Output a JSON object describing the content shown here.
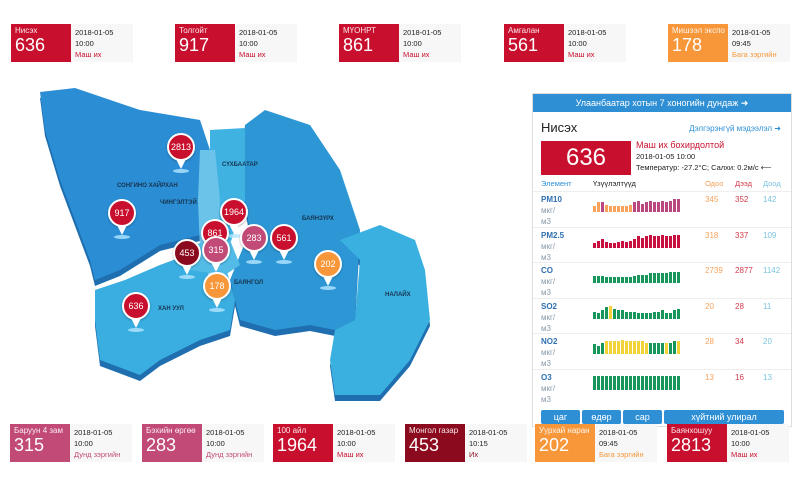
{
  "colors": {
    "very_high": "#c8102e",
    "high": "#8b0a1e",
    "medium": "#c24a77",
    "low": "#f7973a",
    "pm10_bars": "#b9467f",
    "pm25_bars": "#c8103e",
    "green": "#16965a",
    "yellow": "#f2d236",
    "accent": "#2f8fd5"
  },
  "top_cards": [
    {
      "name": "Нисэх",
      "value": "636",
      "date": "2018-01-05",
      "time": "10:00",
      "status": "Маш их",
      "level": "very_high"
    },
    {
      "name": "Толгойт",
      "value": "917",
      "date": "2018-01-05",
      "time": "10:00",
      "status": "Маш их",
      "level": "very_high"
    },
    {
      "name": "МҮОНРТ",
      "value": "861",
      "date": "2018-01-05",
      "time": "10:00",
      "status": "Маш их",
      "level": "very_high"
    },
    {
      "name": "Амгалан",
      "value": "561",
      "date": "2018-01-05",
      "time": "10:00",
      "status": "Маш их",
      "level": "very_high"
    },
    {
      "name": "Мишээл экспо",
      "value": "178",
      "date": "2018-01-05",
      "time": "09:45",
      "status": "Бага зэргийн",
      "level": "low"
    }
  ],
  "bottom_cards": [
    {
      "name": "Баруун 4 зам",
      "value": "315",
      "date": "2018-01-05",
      "time": "10:00",
      "status": "Дунд зэргийн",
      "level": "medium"
    },
    {
      "name": "Бэхийн өргөө",
      "value": "283",
      "date": "2018-01-05",
      "time": "10:00",
      "status": "Дунд зэргийн",
      "level": "medium"
    },
    {
      "name": "100 айл",
      "value": "1964",
      "date": "2018-01-05",
      "time": "10:00",
      "status": "Маш их",
      "level": "very_high"
    },
    {
      "name": "Монгол газар",
      "value": "453",
      "date": "2018-01-05",
      "time": "10:15",
      "status": "Их",
      "level": "high"
    },
    {
      "name": "Уурхай наран",
      "value": "202",
      "date": "2018-01-05",
      "time": "09:45",
      "status": "Бага зэргийн",
      "level": "low"
    },
    {
      "name": "Баянхошуу",
      "value": "2813",
      "date": "2018-01-05",
      "time": "10:00",
      "status": "Маш их",
      "level": "very_high"
    }
  ],
  "map": {
    "districts": [
      "СОНГИНО ХАЙРХАН",
      "СҮХБААТАР",
      "ЧИНГЭЛТЭЙ",
      "БАЯНЗҮРХ",
      "БАЯНГОЛ",
      "ХАН УУЛ",
      "НАЛАЙХ"
    ],
    "pins": [
      {
        "value": "2813",
        "level": "very_high"
      },
      {
        "value": "917",
        "level": "very_high"
      },
      {
        "value": "1964",
        "level": "very_high"
      },
      {
        "value": "861",
        "level": "very_high"
      },
      {
        "value": "315",
        "level": "medium"
      },
      {
        "value": "453",
        "level": "high"
      },
      {
        "value": "283",
        "level": "medium"
      },
      {
        "value": "561",
        "level": "very_high"
      },
      {
        "value": "202",
        "level": "low"
      },
      {
        "value": "178",
        "level": "low"
      },
      {
        "value": "636",
        "level": "very_high"
      }
    ]
  },
  "panel": {
    "header": "Улаанбаатар хотын 7 хоногийн дундаж",
    "station": "Нисэх",
    "details_link": "Дэлгэрэнгүй мэдээлэл",
    "value": "636",
    "level_text": "Маш их бохирдолтой",
    "datetime": "2018-01-05 10:00",
    "weather": "Температур: -27.2°C; Салхи: 0.2м/с",
    "columns": {
      "element": "Элемент",
      "chart": "Үзүүлэлтүүд",
      "now": "Одоо",
      "max": "Дээд",
      "min": "Доод"
    },
    "unit": [
      "мкг/",
      "м3"
    ],
    "rows": [
      {
        "element": "PM10",
        "now": "345",
        "max": "352",
        "min": "142",
        "bars": [
          4,
          7,
          7,
          5,
          4,
          4,
          4,
          4,
          4,
          5,
          7,
          8,
          6,
          7,
          8,
          7,
          7,
          8,
          7,
          8,
          9,
          9
        ],
        "bar_colors": "oomooooooommmmmmmmmmmm"
      },
      {
        "element": "PM2.5",
        "now": "318",
        "max": "337",
        "min": "109",
        "bars": [
          3,
          5,
          6,
          4,
          3,
          3,
          4,
          5,
          4,
          5,
          6,
          8,
          7,
          8,
          9,
          8,
          8,
          9,
          8,
          8,
          9,
          9
        ],
        "bar_colors": "pppppppppppppppppppppp"
      },
      {
        "element": "CO",
        "now": "2739",
        "max": "2877",
        "min": "1142",
        "bars": [
          5,
          5,
          5,
          4,
          4,
          4,
          4,
          4,
          4,
          4,
          5,
          6,
          6,
          6,
          7,
          7,
          7,
          7,
          7,
          8,
          8,
          8
        ],
        "bar_colors": "gggggggggggggggggggggg"
      },
      {
        "element": "SO2",
        "now": "20",
        "max": "28",
        "min": "11",
        "bars": [
          5,
          4,
          6,
          8,
          9,
          7,
          6,
          6,
          5,
          5,
          5,
          4,
          4,
          4,
          4,
          5,
          5,
          6,
          4,
          4,
          6,
          7
        ],
        "bar_colors": "ggggyggggggggggggggggg"
      },
      {
        "element": "NO2",
        "now": "28",
        "max": "34",
        "min": "20",
        "bars": [
          7,
          6,
          8,
          9,
          9,
          9,
          9,
          10,
          9,
          9,
          9,
          9,
          9,
          8,
          8,
          8,
          8,
          8,
          8,
          8,
          9,
          9
        ],
        "bar_colors": "gggyyyyyyyyyyyggggyggy"
      },
      {
        "element": "O3",
        "now": "13",
        "max": "16",
        "min": "13",
        "bars": [
          10,
          10,
          10,
          10,
          10,
          10,
          10,
          10,
          10,
          10,
          10,
          10,
          10,
          10,
          10,
          10,
          10,
          10,
          10,
          10,
          10,
          10
        ],
        "bar_colors": "gggggggggggggggggggggg"
      }
    ],
    "tabs": [
      "цаг",
      "өдөр",
      "сар",
      "хүйтний улирал"
    ]
  }
}
